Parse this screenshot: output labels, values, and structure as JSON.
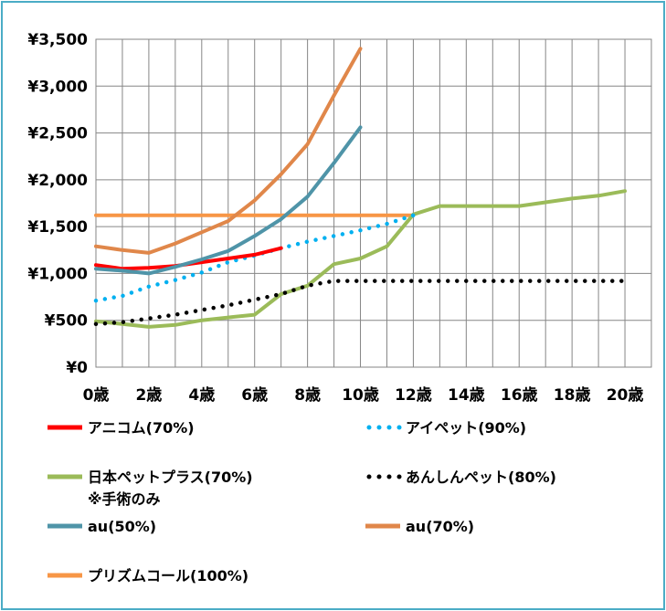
{
  "chart_data": {
    "type": "line",
    "title": "",
    "xlabel": "",
    "ylabel": "",
    "x_ticks": [
      "0歳",
      "2歳",
      "4歳",
      "6歳",
      "8歳",
      "10歳",
      "12歳",
      "14歳",
      "16歳",
      "18歳",
      "20歳"
    ],
    "y_ticks": [
      "¥0",
      "¥500",
      "¥1,000",
      "¥1,500",
      "¥2,000",
      "¥2,500",
      "¥3,000",
      "¥3,500"
    ],
    "xlim": [
      0,
      21
    ],
    "ylim": [
      0,
      3500
    ],
    "grid": true,
    "legend_position": "bottom",
    "series": [
      {
        "name": "アニコム(70%)",
        "color": "#ff0000",
        "style": "solid",
        "x": [
          0,
          1,
          2,
          3,
          4,
          5,
          6,
          7
        ],
        "y": [
          1090,
          1050,
          1060,
          1080,
          1120,
          1160,
          1200,
          1270
        ]
      },
      {
        "name": "アイペット(90%)",
        "color": "#00b0f0",
        "style": "dotted",
        "x": [
          0,
          1,
          2,
          3,
          4,
          5,
          6,
          7,
          8,
          9,
          10,
          11,
          12
        ],
        "y": [
          710,
          760,
          860,
          930,
          1010,
          1120,
          1190,
          1270,
          1340,
          1400,
          1460,
          1530,
          1620
        ]
      },
      {
        "name": "日本ペットプラス(70%)",
        "note": "※手術のみ",
        "color": "#9bbb59",
        "style": "solid",
        "x": [
          0,
          1,
          2,
          3,
          4,
          5,
          6,
          7,
          8,
          9,
          10,
          11,
          12,
          13,
          14,
          15,
          16,
          17,
          18,
          19,
          20
        ],
        "y": [
          490,
          460,
          430,
          450,
          500,
          530,
          560,
          780,
          870,
          1100,
          1160,
          1290,
          1630,
          1720,
          1720,
          1720,
          1720,
          1760,
          1800,
          1830,
          1880
        ]
      },
      {
        "name": "あんしんペット(80%)",
        "color": "#000000",
        "style": "dotted",
        "x": [
          0,
          1,
          2,
          3,
          4,
          5,
          6,
          7,
          8,
          9,
          10,
          11,
          12,
          13,
          14,
          15,
          16,
          17,
          18,
          19,
          20
        ],
        "y": [
          460,
          480,
          520,
          560,
          610,
          660,
          720,
          780,
          870,
          920,
          920,
          920,
          920,
          920,
          920,
          920,
          920,
          920,
          920,
          920,
          920
        ]
      },
      {
        "name": "au(50%)",
        "color": "#4f94a8",
        "style": "solid",
        "x": [
          0,
          1,
          2,
          3,
          4,
          5,
          6,
          7,
          8,
          9,
          10
        ],
        "y": [
          1050,
          1030,
          1000,
          1070,
          1150,
          1240,
          1400,
          1580,
          1820,
          2180,
          2560
        ]
      },
      {
        "name": "au(70%)",
        "color": "#e0874a",
        "style": "solid",
        "x": [
          0,
          1,
          2,
          3,
          4,
          5,
          6,
          7,
          8,
          9,
          10
        ],
        "y": [
          1290,
          1250,
          1220,
          1320,
          1440,
          1560,
          1780,
          2060,
          2380,
          2900,
          3400
        ]
      },
      {
        "name": "プリズムコール(100%)",
        "color": "#f79646",
        "style": "solid",
        "x": [
          0,
          12
        ],
        "y": [
          1620,
          1620
        ]
      }
    ]
  }
}
